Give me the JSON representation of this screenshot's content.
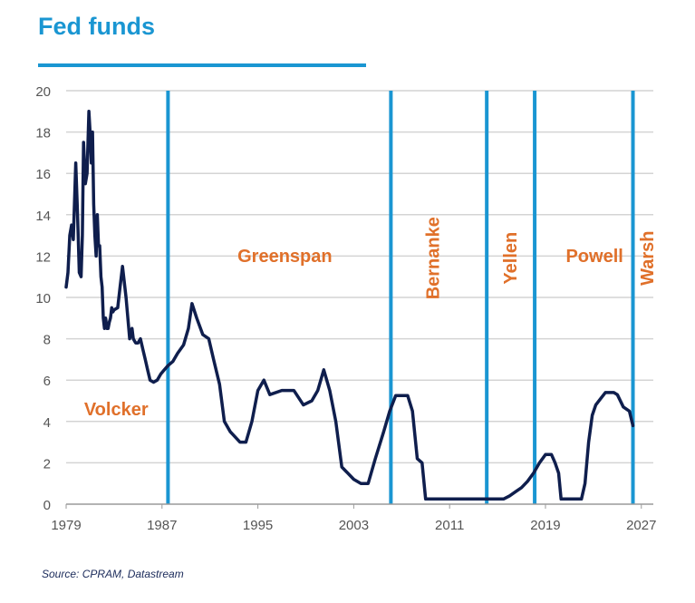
{
  "title": "Fed funds",
  "source": "Source: CPRAM, Datastream",
  "colors": {
    "title": "#1a96d2",
    "line": "#0f1e4d",
    "divider": "#1a96d2",
    "label": "#e0702a",
    "grid": "#d4d4d4",
    "axis": "#555555"
  },
  "chart_data": {
    "type": "line",
    "title": "Fed funds",
    "xlabel": "",
    "ylabel": "",
    "xlim": [
      1979,
      2028
    ],
    "ylim": [
      0,
      20
    ],
    "xticks": [
      1979,
      1987,
      1995,
      2003,
      2011,
      2019,
      2027
    ],
    "yticks": [
      0,
      2,
      4,
      6,
      8,
      10,
      12,
      14,
      16,
      18,
      20
    ],
    "grid": true,
    "series": [
      {
        "x": [
          1979.0,
          1979.15,
          1979.3,
          1979.45,
          1979.6,
          1979.8,
          1979.95,
          1980.1,
          1980.25,
          1980.35,
          1980.45,
          1980.6,
          1980.75,
          1980.9,
          1981.0,
          1981.1,
          1981.2,
          1981.3,
          1981.4,
          1981.5,
          1981.6,
          1981.7,
          1981.8,
          1981.9,
          1982.0,
          1982.1,
          1982.2,
          1982.3,
          1982.4,
          1982.5,
          1982.6,
          1982.7,
          1982.8,
          1982.9,
          1983.0,
          1983.3,
          1983.5,
          1983.7,
          1984.0,
          1984.3,
          1984.5,
          1984.6,
          1984.8,
          1985.0,
          1985.2,
          1985.4,
          1985.6,
          1985.8,
          1986.0,
          1986.3,
          1986.6,
          1986.9,
          1987.2,
          1987.5,
          1987.9,
          1988.3,
          1988.8,
          1989.2,
          1989.5,
          1989.9,
          1990.4,
          1990.9,
          1991.3,
          1991.8,
          1992.2,
          1992.7,
          1993.5,
          1994.0,
          1994.5,
          1995.0,
          1995.5,
          1996.0,
          1997.0,
          1998.0,
          1998.8,
          1999.5,
          2000.0,
          2000.5,
          2001.0,
          2001.5,
          2002.0,
          2003.0,
          2003.6,
          2004.2,
          2004.8,
          2005.5,
          2006.0,
          2006.5,
          2007.0,
          2007.5,
          2007.9,
          2008.3,
          2008.7,
          2009.0,
          2010.0,
          2012.0,
          2014.0,
          2015.5,
          2016.0,
          2016.5,
          2017.0,
          2017.5,
          2018.0,
          2018.5,
          2019.0,
          2019.5,
          2019.8,
          2020.1,
          2020.3,
          2021.0,
          2022.0,
          2022.3,
          2022.6,
          2022.9,
          2023.2,
          2023.6,
          2024.0,
          2024.7,
          2025.0,
          2025.5,
          2026.0,
          2026.3
        ],
        "y": [
          10.5,
          11.2,
          13.0,
          13.5,
          12.8,
          16.5,
          14.0,
          11.2,
          11.0,
          13.0,
          17.5,
          15.5,
          16.0,
          19.0,
          18.0,
          16.5,
          18.0,
          14.5,
          13.0,
          12.0,
          14.0,
          12.5,
          12.5,
          11.0,
          10.5,
          9.0,
          8.5,
          9.0,
          8.5,
          8.5,
          8.8,
          9.0,
          9.5,
          9.3,
          9.4,
          9.5,
          10.5,
          11.5,
          10.0,
          8.0,
          8.5,
          8.0,
          7.8,
          7.8,
          8.0,
          7.5,
          7.0,
          6.5,
          6.0,
          5.9,
          6.0,
          6.3,
          6.5,
          6.7,
          6.9,
          7.3,
          7.7,
          8.5,
          9.7,
          9.0,
          8.2,
          8.0,
          7.0,
          5.8,
          4.0,
          3.5,
          3.0,
          3.0,
          4.0,
          5.5,
          6.0,
          5.3,
          5.5,
          5.5,
          4.8,
          5.0,
          5.5,
          6.5,
          5.5,
          4.0,
          1.8,
          1.2,
          1.0,
          1.0,
          2.2,
          3.5,
          4.5,
          5.25,
          5.25,
          5.25,
          4.5,
          2.2,
          2.0,
          0.25,
          0.25,
          0.25,
          0.25,
          0.25,
          0.4,
          0.6,
          0.8,
          1.1,
          1.5,
          2.0,
          2.4,
          2.4,
          2.0,
          1.5,
          0.25,
          0.25,
          0.25,
          1.0,
          3.0,
          4.3,
          4.8,
          5.1,
          5.4,
          5.4,
          5.3,
          4.7,
          4.5,
          3.8
        ]
      }
    ],
    "dividers": [
      1987.5,
      2006.1,
      2014.1,
      2018.1,
      2026.3
    ],
    "annotations": [
      {
        "text": "Volcker",
        "x": 1980.5,
        "y": 4.3,
        "vertical": false
      },
      {
        "text": "Greenspan",
        "x": 1993.3,
        "y": 11.7,
        "vertical": false
      },
      {
        "text": "Bernanke",
        "x": 2010.1,
        "y": 11.9,
        "vertical": true
      },
      {
        "text": "Yellen",
        "x": 2016.6,
        "y": 11.9,
        "vertical": true
      },
      {
        "text": "Powell",
        "x": 2020.7,
        "y": 11.7,
        "vertical": false
      },
      {
        "text": "Warsh",
        "x": 2028.0,
        "y": 11.9,
        "vertical": true
      }
    ]
  }
}
